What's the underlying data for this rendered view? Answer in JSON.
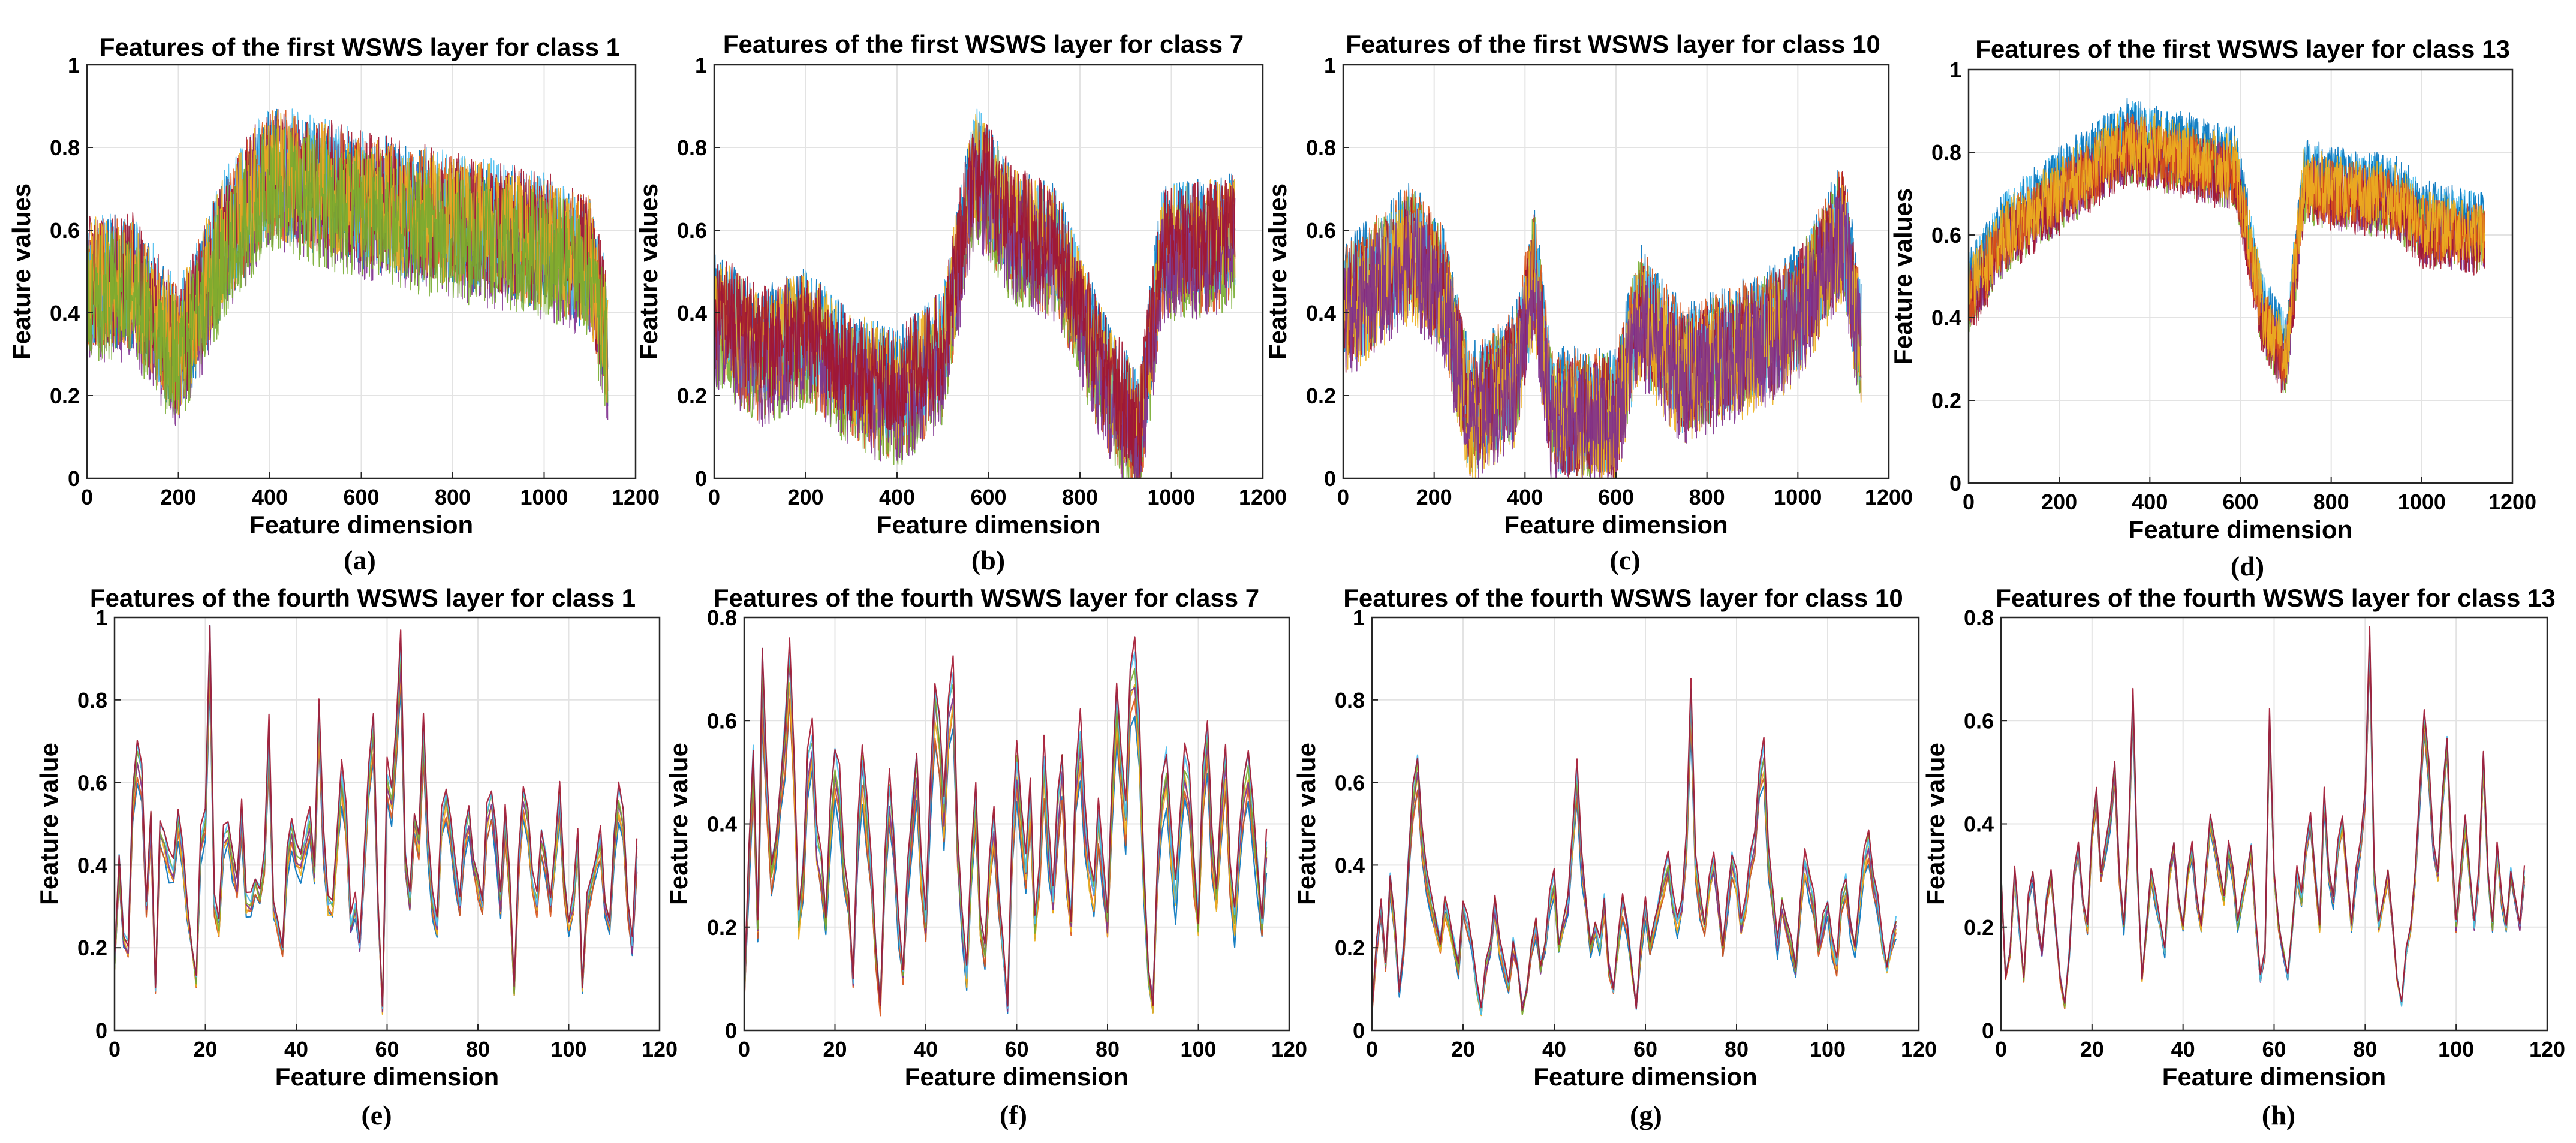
{
  "chart_data": [
    {
      "id": "a",
      "type": "line",
      "panel_label": "(a)",
      "title": "Features of the first WSWS layer for class 1",
      "xlabel": "Feature dimension",
      "ylabel": "Feature values",
      "xlim": [
        0,
        1200
      ],
      "ylim": [
        0,
        1
      ],
      "xticks": [
        "0",
        "200",
        "400",
        "600",
        "800",
        "1000",
        "1200"
      ],
      "yticks": [
        "0",
        "0.2",
        "0.4",
        "0.6",
        "0.8",
        "1"
      ],
      "n_points": 1140,
      "noise": 0.16,
      "grid": true,
      "series_colors": [
        "#0072BD",
        "#D95319",
        "#7E2F8E",
        "#4DBEEE",
        "#A2142F",
        "#EDB120",
        "#77AC30"
      ],
      "profile": [
        [
          0,
          0.45
        ],
        [
          100,
          0.45
        ],
        [
          200,
          0.28
        ],
        [
          300,
          0.55
        ],
        [
          400,
          0.72
        ],
        [
          600,
          0.65
        ],
        [
          800,
          0.6
        ],
        [
          1000,
          0.55
        ],
        [
          1100,
          0.5
        ],
        [
          1140,
          0.3
        ]
      ]
    },
    {
      "id": "b",
      "type": "line",
      "panel_label": "(b)",
      "title": "Features of the first WSWS layer for class 7",
      "xlabel": "Feature dimension",
      "ylabel": "Feature values",
      "xlim": [
        0,
        1200
      ],
      "ylim": [
        0,
        1
      ],
      "xticks": [
        "0",
        "200",
        "400",
        "600",
        "800",
        "1000",
        "1200"
      ],
      "yticks": [
        "0",
        "0.2",
        "0.4",
        "0.6",
        "0.8",
        "1"
      ],
      "n_points": 1140,
      "noise": 0.14,
      "grid": true,
      "series_colors": [
        "#0072BD",
        "#D95319",
        "#77AC30",
        "#4DBEEE",
        "#EDB120",
        "#7E2F8E",
        "#A2142F"
      ],
      "profile": [
        [
          0,
          0.4
        ],
        [
          100,
          0.3
        ],
        [
          200,
          0.35
        ],
        [
          300,
          0.25
        ],
        [
          400,
          0.2
        ],
        [
          500,
          0.3
        ],
        [
          570,
          0.75
        ],
        [
          650,
          0.6
        ],
        [
          750,
          0.55
        ],
        [
          850,
          0.25
        ],
        [
          930,
          0.1
        ],
        [
          980,
          0.55
        ],
        [
          1140,
          0.58
        ]
      ]
    },
    {
      "id": "c",
      "type": "line",
      "panel_label": "(c)",
      "title": "Features of the first WSWS layer for class 10",
      "xlabel": "Feature dimension",
      "ylabel": "Feature values",
      "xlim": [
        0,
        1200
      ],
      "ylim": [
        0,
        1
      ],
      "xticks": [
        "0",
        "200",
        "400",
        "600",
        "800",
        "1000",
        "1200"
      ],
      "yticks": [
        "0",
        "0.2",
        "0.4",
        "0.6",
        "0.8",
        "1"
      ],
      "n_points": 1140,
      "noise": 0.15,
      "grid": true,
      "series_colors": [
        "#0072BD",
        "#77AC30",
        "#D95319",
        "#4DBEEE",
        "#A2142F",
        "#EDB120",
        "#7E2F8E"
      ],
      "profile": [
        [
          0,
          0.4
        ],
        [
          150,
          0.55
        ],
        [
          220,
          0.45
        ],
        [
          280,
          0.15
        ],
        [
          380,
          0.25
        ],
        [
          420,
          0.5
        ],
        [
          460,
          0.15
        ],
        [
          600,
          0.15
        ],
        [
          650,
          0.4
        ],
        [
          750,
          0.25
        ],
        [
          850,
          0.3
        ],
        [
          950,
          0.35
        ],
        [
          1000,
          0.4
        ],
        [
          1100,
          0.6
        ],
        [
          1140,
          0.3
        ]
      ]
    },
    {
      "id": "d",
      "type": "line",
      "panel_label": "(d)",
      "title": "Features of the first WSWS layer for class 13",
      "xlabel": "Feature dimension",
      "ylabel": "Feature values",
      "xlim": [
        0,
        1200
      ],
      "ylim": [
        0,
        1
      ],
      "xticks": [
        "0",
        "200",
        "400",
        "600",
        "800",
        "1000",
        "1200"
      ],
      "yticks": [
        "0",
        "0.2",
        "0.4",
        "0.6",
        "0.8",
        "1"
      ],
      "n_points": 1140,
      "noise": 0.08,
      "grid": true,
      "series_colors": [
        "#4DBEEE",
        "#0072BD",
        "#77AC30",
        "#7E2F8E",
        "#A2142F",
        "#D95319",
        "#EDB120"
      ],
      "profile": [
        [
          0,
          0.45
        ],
        [
          80,
          0.6
        ],
        [
          200,
          0.7
        ],
        [
          350,
          0.82
        ],
        [
          500,
          0.78
        ],
        [
          590,
          0.75
        ],
        [
          650,
          0.4
        ],
        [
          700,
          0.3
        ],
        [
          740,
          0.72
        ],
        [
          950,
          0.68
        ],
        [
          1000,
          0.62
        ],
        [
          1140,
          0.6
        ]
      ]
    },
    {
      "id": "e",
      "type": "line",
      "panel_label": "(e)",
      "title": "Features of the fourth WSWS layer for class 1",
      "xlabel": "Feature dimension",
      "ylabel": "Feature value",
      "xlim": [
        0,
        120
      ],
      "ylim": [
        0,
        1
      ],
      "xticks": [
        "0",
        "20",
        "40",
        "60",
        "80",
        "100",
        "120"
      ],
      "yticks": [
        "0",
        "0.2",
        "0.4",
        "0.6",
        "0.8",
        "1"
      ],
      "n_points": 116,
      "spread": 0.03,
      "grid": true,
      "series_colors": [
        "#0072BD",
        "#D95319",
        "#EDB120",
        "#7E2F8E",
        "#77AC30",
        "#4DBEEE",
        "#A2142F"
      ],
      "base": [
        0.15,
        0.4,
        0.22,
        0.2,
        0.55,
        0.65,
        0.6,
        0.3,
        0.5,
        0.1,
        0.48,
        0.45,
        0.4,
        0.38,
        0.5,
        0.42,
        0.3,
        0.2,
        0.12,
        0.45,
        0.5,
        0.92,
        0.3,
        0.25,
        0.45,
        0.48,
        0.4,
        0.35,
        0.52,
        0.3,
        0.3,
        0.35,
        0.32,
        0.4,
        0.7,
        0.3,
        0.25,
        0.2,
        0.4,
        0.48,
        0.42,
        0.4,
        0.45,
        0.5,
        0.38,
        0.75,
        0.45,
        0.3,
        0.3,
        0.45,
        0.6,
        0.5,
        0.25,
        0.3,
        0.2,
        0.4,
        0.6,
        0.72,
        0.3,
        0.05,
        0.6,
        0.55,
        0.7,
        0.9,
        0.4,
        0.3,
        0.5,
        0.45,
        0.7,
        0.45,
        0.3,
        0.25,
        0.5,
        0.55,
        0.48,
        0.38,
        0.3,
        0.45,
        0.5,
        0.4,
        0.35,
        0.3,
        0.5,
        0.55,
        0.45,
        0.3,
        0.5,
        0.35,
        0.1,
        0.4,
        0.55,
        0.5,
        0.35,
        0.3,
        0.45,
        0.4,
        0.3,
        0.42,
        0.55,
        0.35,
        0.25,
        0.3,
        0.45,
        0.1,
        0.3,
        0.35,
        0.4,
        0.45,
        0.3,
        0.25,
        0.45,
        0.55,
        0.5,
        0.3,
        0.2,
        0.42
      ]
    },
    {
      "id": "f",
      "type": "line",
      "panel_label": "(f)",
      "title": "Features of the fourth WSWS layer for class 7",
      "xlabel": "Feature dimension",
      "ylabel": "Feature value",
      "xlim": [
        0,
        120
      ],
      "ylim": [
        0,
        0.8
      ],
      "xticks": [
        "0",
        "20",
        "40",
        "60",
        "80",
        "100",
        "120"
      ],
      "yticks": [
        "0",
        "0.2",
        "0.4",
        "0.6",
        "0.8"
      ],
      "n_points": 116,
      "spread": 0.04,
      "grid": true,
      "series_colors": [
        "#0072BD",
        "#D95319",
        "#EDB120",
        "#7E2F8E",
        "#77AC30",
        "#4DBEEE",
        "#A2142F"
      ],
      "base": [
        0.05,
        0.3,
        0.5,
        0.2,
        0.68,
        0.45,
        0.3,
        0.35,
        0.45,
        0.55,
        0.7,
        0.5,
        0.2,
        0.3,
        0.5,
        0.55,
        0.35,
        0.3,
        0.2,
        0.4,
        0.5,
        0.45,
        0.3,
        0.25,
        0.1,
        0.35,
        0.5,
        0.4,
        0.3,
        0.15,
        0.05,
        0.3,
        0.45,
        0.35,
        0.2,
        0.1,
        0.3,
        0.4,
        0.5,
        0.3,
        0.2,
        0.45,
        0.62,
        0.55,
        0.4,
        0.6,
        0.65,
        0.35,
        0.2,
        0.1,
        0.3,
        0.45,
        0.2,
        0.15,
        0.3,
        0.4,
        0.25,
        0.15,
        0.05,
        0.35,
        0.5,
        0.4,
        0.3,
        0.45,
        0.2,
        0.3,
        0.5,
        0.35,
        0.25,
        0.4,
        0.5,
        0.3,
        0.2,
        0.45,
        0.55,
        0.4,
        0.3,
        0.25,
        0.4,
        0.3,
        0.2,
        0.45,
        0.62,
        0.5,
        0.4,
        0.65,
        0.68,
        0.55,
        0.3,
        0.1,
        0.05,
        0.3,
        0.45,
        0.5,
        0.35,
        0.25,
        0.4,
        0.5,
        0.45,
        0.3,
        0.2,
        0.45,
        0.55,
        0.35,
        0.25,
        0.4,
        0.5,
        0.3,
        0.2,
        0.35,
        0.45,
        0.5,
        0.4,
        0.3,
        0.2,
        0.35
      ]
    },
    {
      "id": "g",
      "type": "line",
      "panel_label": "(g)",
      "title": "Features of the fourth WSWS layer for class 10",
      "xlabel": "Feature dimension",
      "ylabel": "Feature value",
      "xlim": [
        0,
        120
      ],
      "ylim": [
        0,
        1
      ],
      "xticks": [
        "0",
        "20",
        "40",
        "60",
        "80",
        "100",
        "120"
      ],
      "yticks": [
        "0",
        "0.2",
        "0.4",
        "0.6",
        "0.8",
        "1"
      ],
      "n_points": 116,
      "spread": 0.03,
      "grid": true,
      "series_colors": [
        "#0072BD",
        "#D95319",
        "#EDB120",
        "#7E2F8E",
        "#77AC30",
        "#4DBEEE",
        "#A2142F"
      ],
      "base": [
        0.05,
        0.2,
        0.3,
        0.15,
        0.35,
        0.25,
        0.1,
        0.2,
        0.4,
        0.55,
        0.62,
        0.45,
        0.35,
        0.3,
        0.25,
        0.2,
        0.3,
        0.25,
        0.2,
        0.15,
        0.3,
        0.25,
        0.2,
        0.1,
        0.05,
        0.15,
        0.2,
        0.3,
        0.2,
        0.15,
        0.1,
        0.2,
        0.15,
        0.05,
        0.1,
        0.2,
        0.25,
        0.15,
        0.2,
        0.3,
        0.35,
        0.2,
        0.25,
        0.3,
        0.45,
        0.6,
        0.4,
        0.3,
        0.2,
        0.25,
        0.2,
        0.3,
        0.15,
        0.1,
        0.2,
        0.3,
        0.25,
        0.15,
        0.05,
        0.2,
        0.3,
        0.2,
        0.25,
        0.3,
        0.35,
        0.4,
        0.3,
        0.25,
        0.3,
        0.45,
        0.8,
        0.4,
        0.3,
        0.25,
        0.35,
        0.4,
        0.3,
        0.2,
        0.3,
        0.4,
        0.35,
        0.25,
        0.3,
        0.4,
        0.45,
        0.6,
        0.65,
        0.4,
        0.3,
        0.2,
        0.3,
        0.25,
        0.2,
        0.15,
        0.3,
        0.4,
        0.35,
        0.3,
        0.2,
        0.25,
        0.3,
        0.2,
        0.15,
        0.3,
        0.35,
        0.25,
        0.2,
        0.3,
        0.4,
        0.45,
        0.35,
        0.3,
        0.2,
        0.15,
        0.2,
        0.25
      ]
    },
    {
      "id": "h",
      "type": "line",
      "panel_label": "(h)",
      "title": "Features of the fourth WSWS layer for class 13",
      "xlabel": "Feature dimension",
      "ylabel": "Feature value",
      "xlim": [
        0,
        120
      ],
      "ylim": [
        0,
        0.8
      ],
      "xticks": [
        "0",
        "20",
        "40",
        "60",
        "80",
        "100",
        "120"
      ],
      "yticks": [
        "0",
        "0.2",
        "0.4",
        "0.6",
        "0.8"
      ],
      "n_points": 116,
      "spread": 0.015,
      "grid": true,
      "series_colors": [
        "#0072BD",
        "#D95319",
        "#EDB120",
        "#7E2F8E",
        "#77AC30",
        "#4DBEEE",
        "#A2142F"
      ],
      "base": [
        0.3,
        0.1,
        0.15,
        0.3,
        0.2,
        0.1,
        0.25,
        0.3,
        0.2,
        0.15,
        0.25,
        0.3,
        0.2,
        0.1,
        0.05,
        0.15,
        0.3,
        0.35,
        0.25,
        0.2,
        0.38,
        0.45,
        0.3,
        0.35,
        0.4,
        0.5,
        0.3,
        0.2,
        0.35,
        0.64,
        0.3,
        0.1,
        0.2,
        0.3,
        0.25,
        0.2,
        0.15,
        0.3,
        0.35,
        0.25,
        0.2,
        0.3,
        0.35,
        0.25,
        0.2,
        0.3,
        0.4,
        0.35,
        0.3,
        0.25,
        0.35,
        0.3,
        0.2,
        0.25,
        0.3,
        0.35,
        0.2,
        0.1,
        0.15,
        0.6,
        0.3,
        0.2,
        0.15,
        0.1,
        0.2,
        0.3,
        0.25,
        0.35,
        0.4,
        0.3,
        0.2,
        0.45,
        0.3,
        0.25,
        0.35,
        0.4,
        0.3,
        0.2,
        0.3,
        0.35,
        0.45,
        0.75,
        0.3,
        0.2,
        0.25,
        0.3,
        0.2,
        0.1,
        0.05,
        0.15,
        0.2,
        0.3,
        0.45,
        0.6,
        0.5,
        0.35,
        0.3,
        0.45,
        0.55,
        0.35,
        0.2,
        0.3,
        0.4,
        0.3,
        0.2,
        0.3,
        0.52,
        0.3,
        0.2,
        0.35,
        0.25,
        0.2,
        0.3,
        0.25,
        0.2,
        0.3
      ]
    }
  ]
}
